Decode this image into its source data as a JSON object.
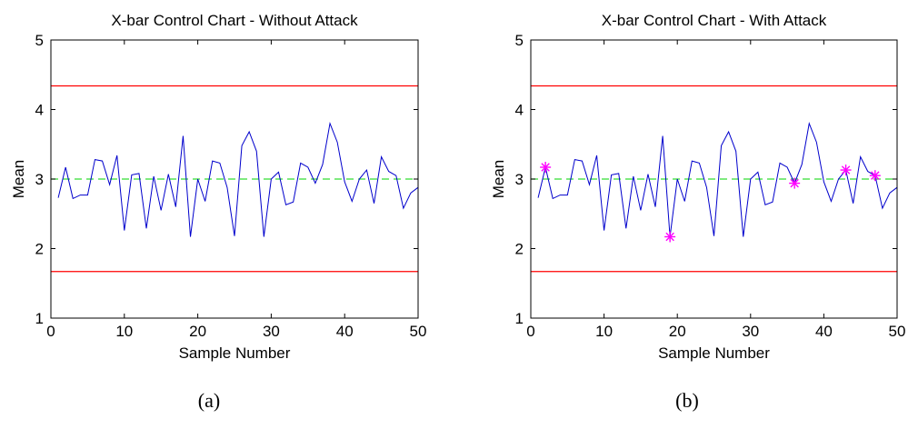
{
  "colors": {
    "series_line": "#0000cc",
    "control_limit": "#ff0000",
    "center_line": "#33dd33",
    "attack_marker": "#ff00ff",
    "axis": "#000000"
  },
  "chart_data": [
    {
      "type": "line",
      "caption": "(a)",
      "title": "X-bar Control Chart - Without Attack",
      "xlabel": "Sample Number",
      "ylabel": "Mean",
      "xlim": [
        0,
        50
      ],
      "ylim": [
        1,
        5
      ],
      "xticks": [
        0,
        10,
        20,
        30,
        40,
        50
      ],
      "yticks": [
        1,
        2,
        3,
        4,
        5
      ],
      "grid": false,
      "x": [
        1,
        2,
        3,
        4,
        5,
        6,
        7,
        8,
        9,
        10,
        11,
        12,
        13,
        14,
        15,
        16,
        17,
        18,
        19,
        20,
        21,
        22,
        23,
        24,
        25,
        26,
        27,
        28,
        29,
        30,
        31,
        32,
        33,
        34,
        35,
        36,
        37,
        38,
        39,
        40,
        41,
        42,
        43,
        44,
        45,
        46,
        47,
        48,
        49,
        50
      ],
      "series": [
        {
          "values": [
            2.73,
            3.17,
            2.72,
            2.77,
            2.77,
            3.28,
            3.26,
            2.92,
            3.34,
            2.26,
            3.06,
            3.08,
            2.29,
            3.04,
            2.55,
            3.07,
            2.6,
            3.62,
            2.17,
            3.0,
            2.68,
            3.26,
            3.23,
            2.88,
            2.18,
            3.48,
            3.68,
            3.4,
            2.17,
            3.0,
            3.1,
            2.63,
            2.67,
            3.23,
            3.17,
            2.94,
            3.21,
            3.8,
            3.53,
            2.96,
            2.68,
            3.0,
            3.13,
            2.65,
            3.32,
            3.11,
            3.05,
            2.58,
            2.8,
            2.88
          ],
          "style": "solid"
        }
      ],
      "reference_lines": [
        {
          "kind": "UCL",
          "y": 4.34,
          "style": "solid"
        },
        {
          "kind": "CL",
          "y": 3.0,
          "style": "dashed"
        },
        {
          "kind": "LCL",
          "y": 1.67,
          "style": "solid"
        }
      ],
      "markers": []
    },
    {
      "type": "line",
      "caption": "(b)",
      "title": "X-bar Control Chart - With Attack",
      "xlabel": "Sample Number",
      "ylabel": "Mean",
      "xlim": [
        0,
        50
      ],
      "ylim": [
        1,
        5
      ],
      "xticks": [
        0,
        10,
        20,
        30,
        40,
        50
      ],
      "yticks": [
        1,
        2,
        3,
        4,
        5
      ],
      "grid": false,
      "x": [
        1,
        2,
        3,
        4,
        5,
        6,
        7,
        8,
        9,
        10,
        11,
        12,
        13,
        14,
        15,
        16,
        17,
        18,
        19,
        20,
        21,
        22,
        23,
        24,
        25,
        26,
        27,
        28,
        29,
        30,
        31,
        32,
        33,
        34,
        35,
        36,
        37,
        38,
        39,
        40,
        41,
        42,
        43,
        44,
        45,
        46,
        47,
        48,
        49,
        50
      ],
      "series": [
        {
          "values": [
            2.73,
            3.17,
            2.72,
            2.77,
            2.77,
            3.28,
            3.26,
            2.92,
            3.34,
            2.26,
            3.06,
            3.08,
            2.29,
            3.04,
            2.55,
            3.07,
            2.6,
            3.62,
            2.17,
            3.0,
            2.68,
            3.26,
            3.23,
            2.88,
            2.18,
            3.48,
            3.68,
            3.4,
            2.17,
            3.0,
            3.1,
            2.63,
            2.67,
            3.23,
            3.17,
            2.94,
            3.21,
            3.8,
            3.53,
            2.96,
            2.68,
            3.0,
            3.13,
            2.65,
            3.32,
            3.11,
            3.05,
            2.58,
            2.8,
            2.88
          ],
          "style": "solid"
        }
      ],
      "reference_lines": [
        {
          "kind": "UCL",
          "y": 4.34,
          "style": "solid"
        },
        {
          "kind": "CL",
          "y": 3.0,
          "style": "dashed"
        },
        {
          "kind": "LCL",
          "y": 1.67,
          "style": "solid"
        }
      ],
      "markers": [
        {
          "x": 2,
          "y": 3.17,
          "symbol": "asterisk"
        },
        {
          "x": 19,
          "y": 2.17,
          "symbol": "asterisk"
        },
        {
          "x": 36,
          "y": 2.94,
          "symbol": "asterisk"
        },
        {
          "x": 43,
          "y": 3.13,
          "symbol": "asterisk"
        },
        {
          "x": 47,
          "y": 3.05,
          "symbol": "asterisk"
        }
      ]
    }
  ]
}
